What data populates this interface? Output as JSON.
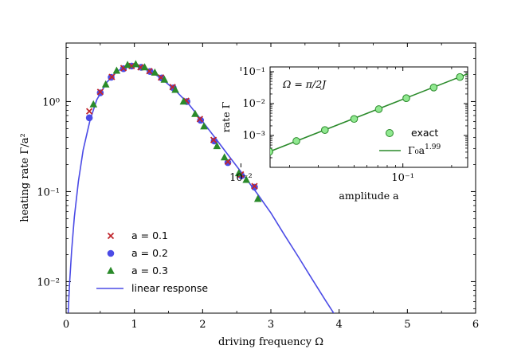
{
  "chart_data": [
    {
      "type": "scatter",
      "xlabel": "driving frequency Ω",
      "ylabel": "heating rate Γ/a²",
      "xlim": [
        0,
        6
      ],
      "ylim_log10": [
        -2.35,
        0.65
      ],
      "x_ticks": [
        "0",
        "1",
        "2",
        "3",
        "4",
        "5",
        "6"
      ],
      "x_tick_values": [
        0,
        1,
        2,
        3,
        4,
        5,
        6
      ],
      "y_ticks": [
        "10⁻²",
        "10⁻¹",
        "10⁰"
      ],
      "y_tick_values": [
        0.01,
        0.1,
        1
      ],
      "legend_position": "lower-left",
      "series": [
        {
          "name": "a = 0.1",
          "marker": "x",
          "color": "#c0262d",
          "x": [
            0.34,
            0.5,
            0.67,
            0.84,
            0.96,
            1.09,
            1.22,
            1.39,
            1.56,
            1.76,
            1.96,
            2.16,
            2.37,
            2.56,
            2.76
          ],
          "y": [
            0.78,
            1.28,
            1.88,
            2.35,
            2.48,
            2.4,
            2.18,
            1.85,
            1.45,
            1.02,
            0.64,
            0.375,
            0.215,
            0.155,
            0.115
          ]
        },
        {
          "name": "a = 0.2",
          "marker": "circle",
          "color": "#4b4be6",
          "x": [
            0.34,
            0.5,
            0.66,
            0.84,
            0.96,
            1.1,
            1.23,
            1.4,
            1.57,
            1.77,
            1.97,
            2.17,
            2.37,
            2.57,
            2.76
          ],
          "y": [
            0.66,
            1.25,
            1.86,
            2.32,
            2.48,
            2.4,
            2.16,
            1.83,
            1.42,
            1.0,
            0.62,
            0.365,
            0.21,
            0.15,
            0.112
          ]
        },
        {
          "name": "a = 0.3",
          "marker": "triangle",
          "color": "#2a8a2a",
          "x": [
            0.4,
            0.58,
            0.74,
            0.9,
            1.02,
            1.15,
            1.3,
            1.44,
            1.6,
            1.72,
            1.89,
            2.02,
            2.21,
            2.32,
            2.53,
            2.64,
            2.81
          ],
          "y": [
            0.93,
            1.55,
            2.2,
            2.55,
            2.6,
            2.4,
            2.1,
            1.75,
            1.35,
            1.0,
            0.73,
            0.53,
            0.32,
            0.24,
            0.16,
            0.135,
            0.083
          ]
        },
        {
          "name": "linear response",
          "type": "line",
          "color": "#4b4be6",
          "x": [
            0.03,
            0.05,
            0.08,
            0.12,
            0.18,
            0.25,
            0.35,
            0.45,
            0.6,
            0.75,
            0.9,
            1.0,
            1.1,
            1.25,
            1.4,
            1.6,
            1.8,
            2.0,
            2.2,
            2.4,
            2.6,
            2.8,
            3.0,
            3.2,
            3.4,
            3.6,
            3.8,
            4.0
          ],
          "y": [
            0.0045,
            0.0095,
            0.022,
            0.052,
            0.13,
            0.29,
            0.62,
            1.05,
            1.65,
            2.18,
            2.48,
            2.5,
            2.4,
            2.12,
            1.8,
            1.33,
            0.93,
            0.6,
            0.38,
            0.24,
            0.152,
            0.095,
            0.058,
            0.033,
            0.019,
            0.0108,
            0.0062,
            0.0036
          ]
        }
      ]
    },
    {
      "type": "scatter",
      "title": "Ω = π/2J",
      "xlabel": "amplitude a",
      "ylabel": "rate Γ",
      "x_scale": "log",
      "y_scale": "log",
      "xlim_log10": [
        -1.82,
        -0.6
      ],
      "ylim_log10": [
        -4.0,
        -0.85
      ],
      "x_ticks": [
        "10⁻²",
        "10⁻¹"
      ],
      "x_tick_values": [
        0.01,
        0.1
      ],
      "y_ticks": [
        "10⁻³",
        "10⁻²",
        "10⁻¹"
      ],
      "y_tick_values": [
        0.001,
        0.01,
        0.1
      ],
      "legend_position": "lower-right",
      "series": [
        {
          "name": "exact",
          "marker": "circle",
          "color": "#90e890",
          "edge_color": "#2a8a2a",
          "x": [
            0.015,
            0.022,
            0.033,
            0.05,
            0.071,
            0.105,
            0.155,
            0.225
          ],
          "y": [
            0.00031,
            0.00067,
            0.00148,
            0.0033,
            0.0067,
            0.0148,
            0.032,
            0.068
          ]
        },
        {
          "name": "Γ₀a",
          "exponent": "1.99",
          "type": "line",
          "color": "#2a8a2a",
          "x": [
            0.011,
            0.35
          ],
          "y": [
            0.000167,
            0.166
          ]
        }
      ]
    }
  ]
}
